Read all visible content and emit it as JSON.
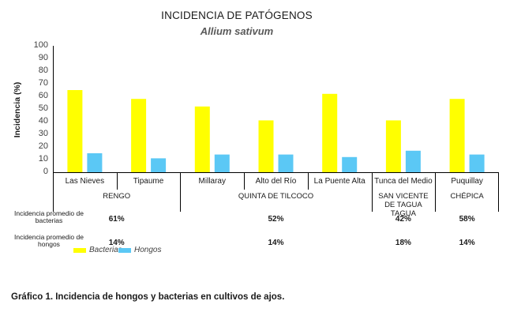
{
  "chart_data": {
    "type": "bar",
    "title": "INCIDENCIA  DE PATÓGENOS",
    "subtitle": "Allium sativum",
    "ylabel": "Incidencia (%)",
    "xlabel": "",
    "ylim": [
      0,
      100
    ],
    "yticks": [
      "0",
      "10",
      "20",
      "30",
      "40",
      "50",
      "60",
      "70",
      "80",
      "90",
      "100"
    ],
    "grid": false,
    "legend_position": "bottom-left",
    "categories": [
      "Las Nieves",
      "Tipaume",
      "Millaray",
      "Alto del Río",
      "La Puente Alta",
      "Tunca del Medio",
      "Puquillay"
    ],
    "series": [
      {
        "name": "Bacterias",
        "color": "#ffff00",
        "values": [
          65,
          58,
          52,
          41,
          62,
          41,
          58
        ]
      },
      {
        "name": "Hongos",
        "color": "#5bc8f5",
        "values": [
          15,
          11,
          14,
          14,
          12,
          17,
          14
        ]
      }
    ],
    "groups": [
      {
        "label": "RENGO",
        "members": [
          "Las Nieves",
          "Tipaume"
        ]
      },
      {
        "label": "QUINTA DE TILCOCO",
        "members": [
          "Millaray",
          "Alto del Río",
          "La Puente Alta"
        ]
      },
      {
        "label": "SAN VICENTE DE TAGUA TAGUA",
        "members": [
          "Tunca del Medio"
        ]
      },
      {
        "label": "CHÉPICA",
        "members": [
          "Puquillay"
        ]
      }
    ],
    "summary_rows": [
      {
        "label": "Incidencia promedio de bacterias",
        "values": [
          "61%",
          "52%",
          "42%",
          "58%"
        ]
      },
      {
        "label": "Incidencia promedio de hongos",
        "values": [
          "14%",
          "14%",
          "18%",
          "14%"
        ]
      }
    ]
  },
  "caption": "Gráfico 1. Incidencia de hongos y bacterias en cultivos de ajos."
}
